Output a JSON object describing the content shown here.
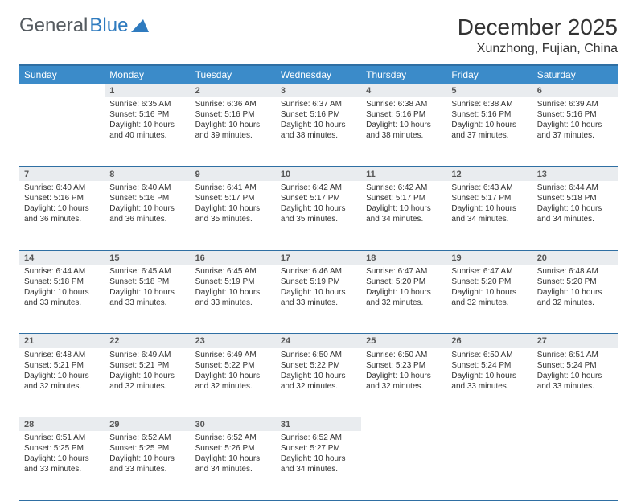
{
  "logo": {
    "text1": "General",
    "text2": "Blue"
  },
  "title": "December 2025",
  "location": "Xunzhong, Fujian, China",
  "weekdays": [
    "Sunday",
    "Monday",
    "Tuesday",
    "Wednesday",
    "Thursday",
    "Friday",
    "Saturday"
  ],
  "colors": {
    "header_bg": "#3b8bc9",
    "header_border": "#2f6fa3",
    "daynum_bg": "#e9ecef",
    "text": "#333333",
    "logo_gray": "#555b60",
    "logo_blue": "#2f7bbf",
    "background": "#ffffff"
  },
  "fonts": {
    "title_pt": 28,
    "location_pt": 16,
    "weekday_pt": 12,
    "cell_pt": 10,
    "daynum_pt": 11
  },
  "layout": {
    "cols": 7,
    "rows": 5,
    "first_day_col": 1,
    "days_in_month": 31
  },
  "days": {
    "1": {
      "sunrise": "6:35 AM",
      "sunset": "5:16 PM",
      "daylight": "10 hours and 40 minutes."
    },
    "2": {
      "sunrise": "6:36 AM",
      "sunset": "5:16 PM",
      "daylight": "10 hours and 39 minutes."
    },
    "3": {
      "sunrise": "6:37 AM",
      "sunset": "5:16 PM",
      "daylight": "10 hours and 38 minutes."
    },
    "4": {
      "sunrise": "6:38 AM",
      "sunset": "5:16 PM",
      "daylight": "10 hours and 38 minutes."
    },
    "5": {
      "sunrise": "6:38 AM",
      "sunset": "5:16 PM",
      "daylight": "10 hours and 37 minutes."
    },
    "6": {
      "sunrise": "6:39 AM",
      "sunset": "5:16 PM",
      "daylight": "10 hours and 37 minutes."
    },
    "7": {
      "sunrise": "6:40 AM",
      "sunset": "5:16 PM",
      "daylight": "10 hours and 36 minutes."
    },
    "8": {
      "sunrise": "6:40 AM",
      "sunset": "5:16 PM",
      "daylight": "10 hours and 36 minutes."
    },
    "9": {
      "sunrise": "6:41 AM",
      "sunset": "5:17 PM",
      "daylight": "10 hours and 35 minutes."
    },
    "10": {
      "sunrise": "6:42 AM",
      "sunset": "5:17 PM",
      "daylight": "10 hours and 35 minutes."
    },
    "11": {
      "sunrise": "6:42 AM",
      "sunset": "5:17 PM",
      "daylight": "10 hours and 34 minutes."
    },
    "12": {
      "sunrise": "6:43 AM",
      "sunset": "5:17 PM",
      "daylight": "10 hours and 34 minutes."
    },
    "13": {
      "sunrise": "6:44 AM",
      "sunset": "5:18 PM",
      "daylight": "10 hours and 34 minutes."
    },
    "14": {
      "sunrise": "6:44 AM",
      "sunset": "5:18 PM",
      "daylight": "10 hours and 33 minutes."
    },
    "15": {
      "sunrise": "6:45 AM",
      "sunset": "5:18 PM",
      "daylight": "10 hours and 33 minutes."
    },
    "16": {
      "sunrise": "6:45 AM",
      "sunset": "5:19 PM",
      "daylight": "10 hours and 33 minutes."
    },
    "17": {
      "sunrise": "6:46 AM",
      "sunset": "5:19 PM",
      "daylight": "10 hours and 33 minutes."
    },
    "18": {
      "sunrise": "6:47 AM",
      "sunset": "5:20 PM",
      "daylight": "10 hours and 32 minutes."
    },
    "19": {
      "sunrise": "6:47 AM",
      "sunset": "5:20 PM",
      "daylight": "10 hours and 32 minutes."
    },
    "20": {
      "sunrise": "6:48 AM",
      "sunset": "5:20 PM",
      "daylight": "10 hours and 32 minutes."
    },
    "21": {
      "sunrise": "6:48 AM",
      "sunset": "5:21 PM",
      "daylight": "10 hours and 32 minutes."
    },
    "22": {
      "sunrise": "6:49 AM",
      "sunset": "5:21 PM",
      "daylight": "10 hours and 32 minutes."
    },
    "23": {
      "sunrise": "6:49 AM",
      "sunset": "5:22 PM",
      "daylight": "10 hours and 32 minutes."
    },
    "24": {
      "sunrise": "6:50 AM",
      "sunset": "5:22 PM",
      "daylight": "10 hours and 32 minutes."
    },
    "25": {
      "sunrise": "6:50 AM",
      "sunset": "5:23 PM",
      "daylight": "10 hours and 32 minutes."
    },
    "26": {
      "sunrise": "6:50 AM",
      "sunset": "5:24 PM",
      "daylight": "10 hours and 33 minutes."
    },
    "27": {
      "sunrise": "6:51 AM",
      "sunset": "5:24 PM",
      "daylight": "10 hours and 33 minutes."
    },
    "28": {
      "sunrise": "6:51 AM",
      "sunset": "5:25 PM",
      "daylight": "10 hours and 33 minutes."
    },
    "29": {
      "sunrise": "6:52 AM",
      "sunset": "5:25 PM",
      "daylight": "10 hours and 33 minutes."
    },
    "30": {
      "sunrise": "6:52 AM",
      "sunset": "5:26 PM",
      "daylight": "10 hours and 34 minutes."
    },
    "31": {
      "sunrise": "6:52 AM",
      "sunset": "5:27 PM",
      "daylight": "10 hours and 34 minutes."
    }
  },
  "labels": {
    "sunrise": "Sunrise: ",
    "sunset": "Sunset: ",
    "daylight": "Daylight: "
  }
}
